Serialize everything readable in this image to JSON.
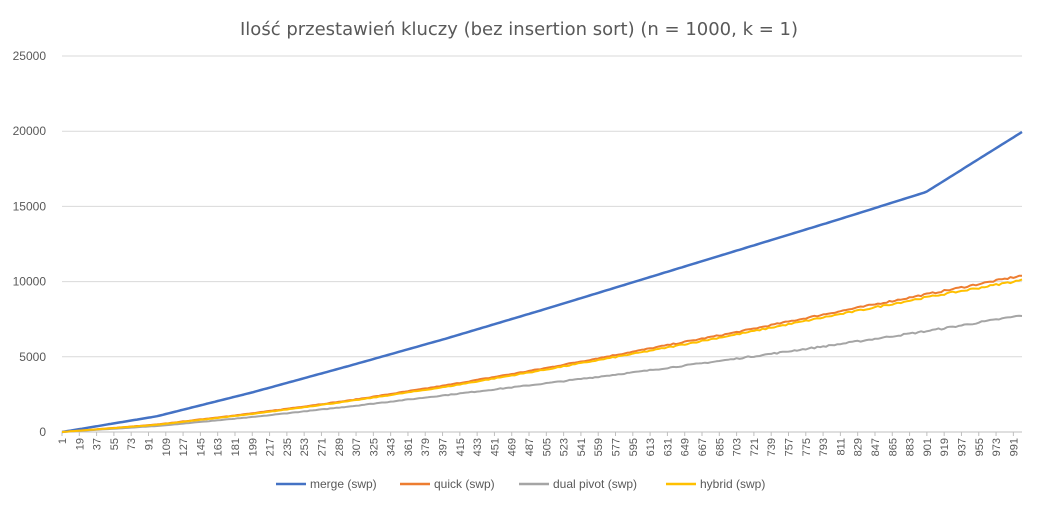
{
  "chart_data": {
    "type": "line",
    "title": "Ilość przestawień kluczy (bez insertion sort) (n = 1000, k = 1)",
    "xlabel": "",
    "ylabel": "",
    "x_range": [
      1,
      1000
    ],
    "ylim": [
      0,
      25000
    ],
    "y_ticks": [
      "0",
      "5000",
      "10000",
      "15000",
      "20000",
      "25000"
    ],
    "x_tick_labels": [
      "1",
      "19",
      "37",
      "55",
      "73",
      "91",
      "109",
      "127",
      "145",
      "163",
      "181",
      "199",
      "217",
      "235",
      "253",
      "271",
      "289",
      "307",
      "325",
      "343",
      "361",
      "379",
      "397",
      "415",
      "433",
      "451",
      "469",
      "487",
      "505",
      "523",
      "541",
      "559",
      "577",
      "595",
      "613",
      "631",
      "649",
      "667",
      "685",
      "703",
      "721",
      "739",
      "757",
      "775",
      "793",
      "811",
      "829",
      "847",
      "865",
      "883",
      "901",
      "919",
      "937",
      "955",
      "973",
      "991"
    ],
    "grid": true,
    "legend_position": "bottom",
    "series": [
      {
        "name": "merge (swp)",
        "color": "#4472C4",
        "points": [
          [
            1,
            0
          ],
          [
            100,
            1050
          ],
          [
            200,
            2650
          ],
          [
            300,
            4400
          ],
          [
            400,
            6200
          ],
          [
            500,
            8100
          ],
          [
            600,
            10050
          ],
          [
            700,
            12000
          ],
          [
            800,
            13950
          ],
          [
            900,
            15950
          ],
          [
            1000,
            19950
          ]
        ]
      },
      {
        "name": "quick (swp)",
        "color": "#ED7D31",
        "points": [
          [
            1,
            0
          ],
          [
            100,
            500
          ],
          [
            200,
            1250
          ],
          [
            300,
            2100
          ],
          [
            400,
            3100
          ],
          [
            500,
            4200
          ],
          [
            600,
            5400
          ],
          [
            700,
            6600
          ],
          [
            800,
            7900
          ],
          [
            900,
            9150
          ],
          [
            1000,
            10400
          ]
        ]
      },
      {
        "name": "dual pivot (swp)",
        "color": "#A5A5A5",
        "points": [
          [
            1,
            0
          ],
          [
            100,
            400
          ],
          [
            200,
            1000
          ],
          [
            300,
            1700
          ],
          [
            400,
            2450
          ],
          [
            500,
            3200
          ],
          [
            600,
            4000
          ],
          [
            700,
            4850
          ],
          [
            800,
            5750
          ],
          [
            900,
            6700
          ],
          [
            1000,
            7750
          ]
        ]
      },
      {
        "name": "hybrid (swp)",
        "color": "#FFC000",
        "points": [
          [
            1,
            0
          ],
          [
            100,
            480
          ],
          [
            200,
            1200
          ],
          [
            300,
            2050
          ],
          [
            400,
            3000
          ],
          [
            500,
            4100
          ],
          [
            600,
            5250
          ],
          [
            700,
            6450
          ],
          [
            800,
            7700
          ],
          [
            900,
            8950
          ],
          [
            1000,
            10100
          ]
        ]
      }
    ]
  }
}
